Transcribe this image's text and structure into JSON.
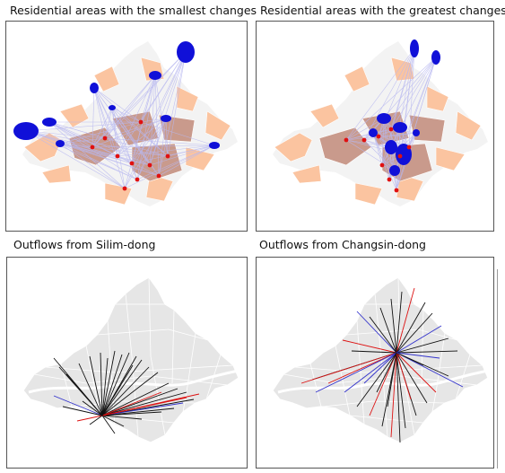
{
  "panels": {
    "top_left": {
      "title": "Residential areas with the smallest changes"
    },
    "top_right": {
      "title": "Residential areas with the greatest changes"
    },
    "bottom_left": {
      "title": "Outflows from Silim-dong"
    },
    "bottom_right": {
      "title": "Outflows from Changsin-dong"
    }
  },
  "colors": {
    "region_base": "#e6e6e6",
    "region_peach": "#fbc4a0",
    "region_brown": "#c99a8c",
    "destination_blue": "#1010d8",
    "origin_red": "#e01010",
    "flow_light": "#b8b8f0",
    "flow_black": "#111111",
    "flow_red": "#dd1111",
    "flow_blue": "#3333cc"
  },
  "legend_semantics": {
    "blue_areas": "destination-areas",
    "red_dots": "origin-points"
  }
}
